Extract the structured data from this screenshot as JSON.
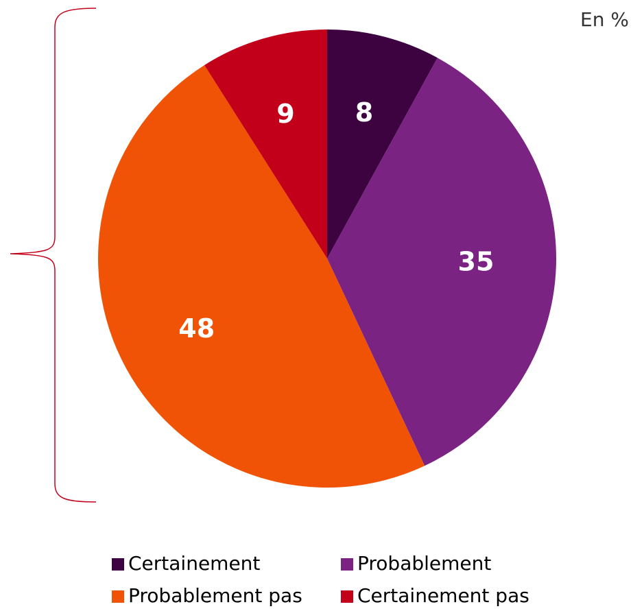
{
  "chart_data": {
    "type": "pie",
    "annotation": "En %",
    "categories": [
      "Certainement",
      "Probablement",
      "Probablement pas",
      "Certainement pas"
    ],
    "values": [
      8,
      35,
      48,
      9
    ],
    "colors": [
      "#3d0240",
      "#7b2382",
      "#f05305",
      "#c3001a"
    ]
  }
}
